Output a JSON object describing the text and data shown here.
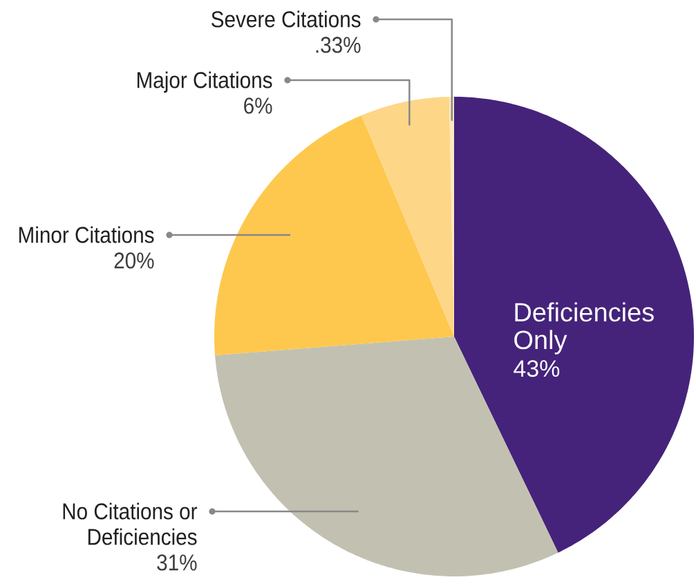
{
  "chart_data": {
    "type": "pie",
    "categories": [
      "Deficiencies Only",
      "No Citations or Deficiencies",
      "Minor Citations",
      "Major Citations",
      "Severe Citations"
    ],
    "values": [
      43,
      31,
      20,
      6,
      0.33
    ],
    "colors": [
      "#45237a",
      "#c2c1b1",
      "#fec84e",
      "#fed687",
      "#fde8c0"
    ],
    "value_labels": [
      "43%",
      "31%",
      "20%",
      "6%",
      ".33%"
    ]
  }
}
